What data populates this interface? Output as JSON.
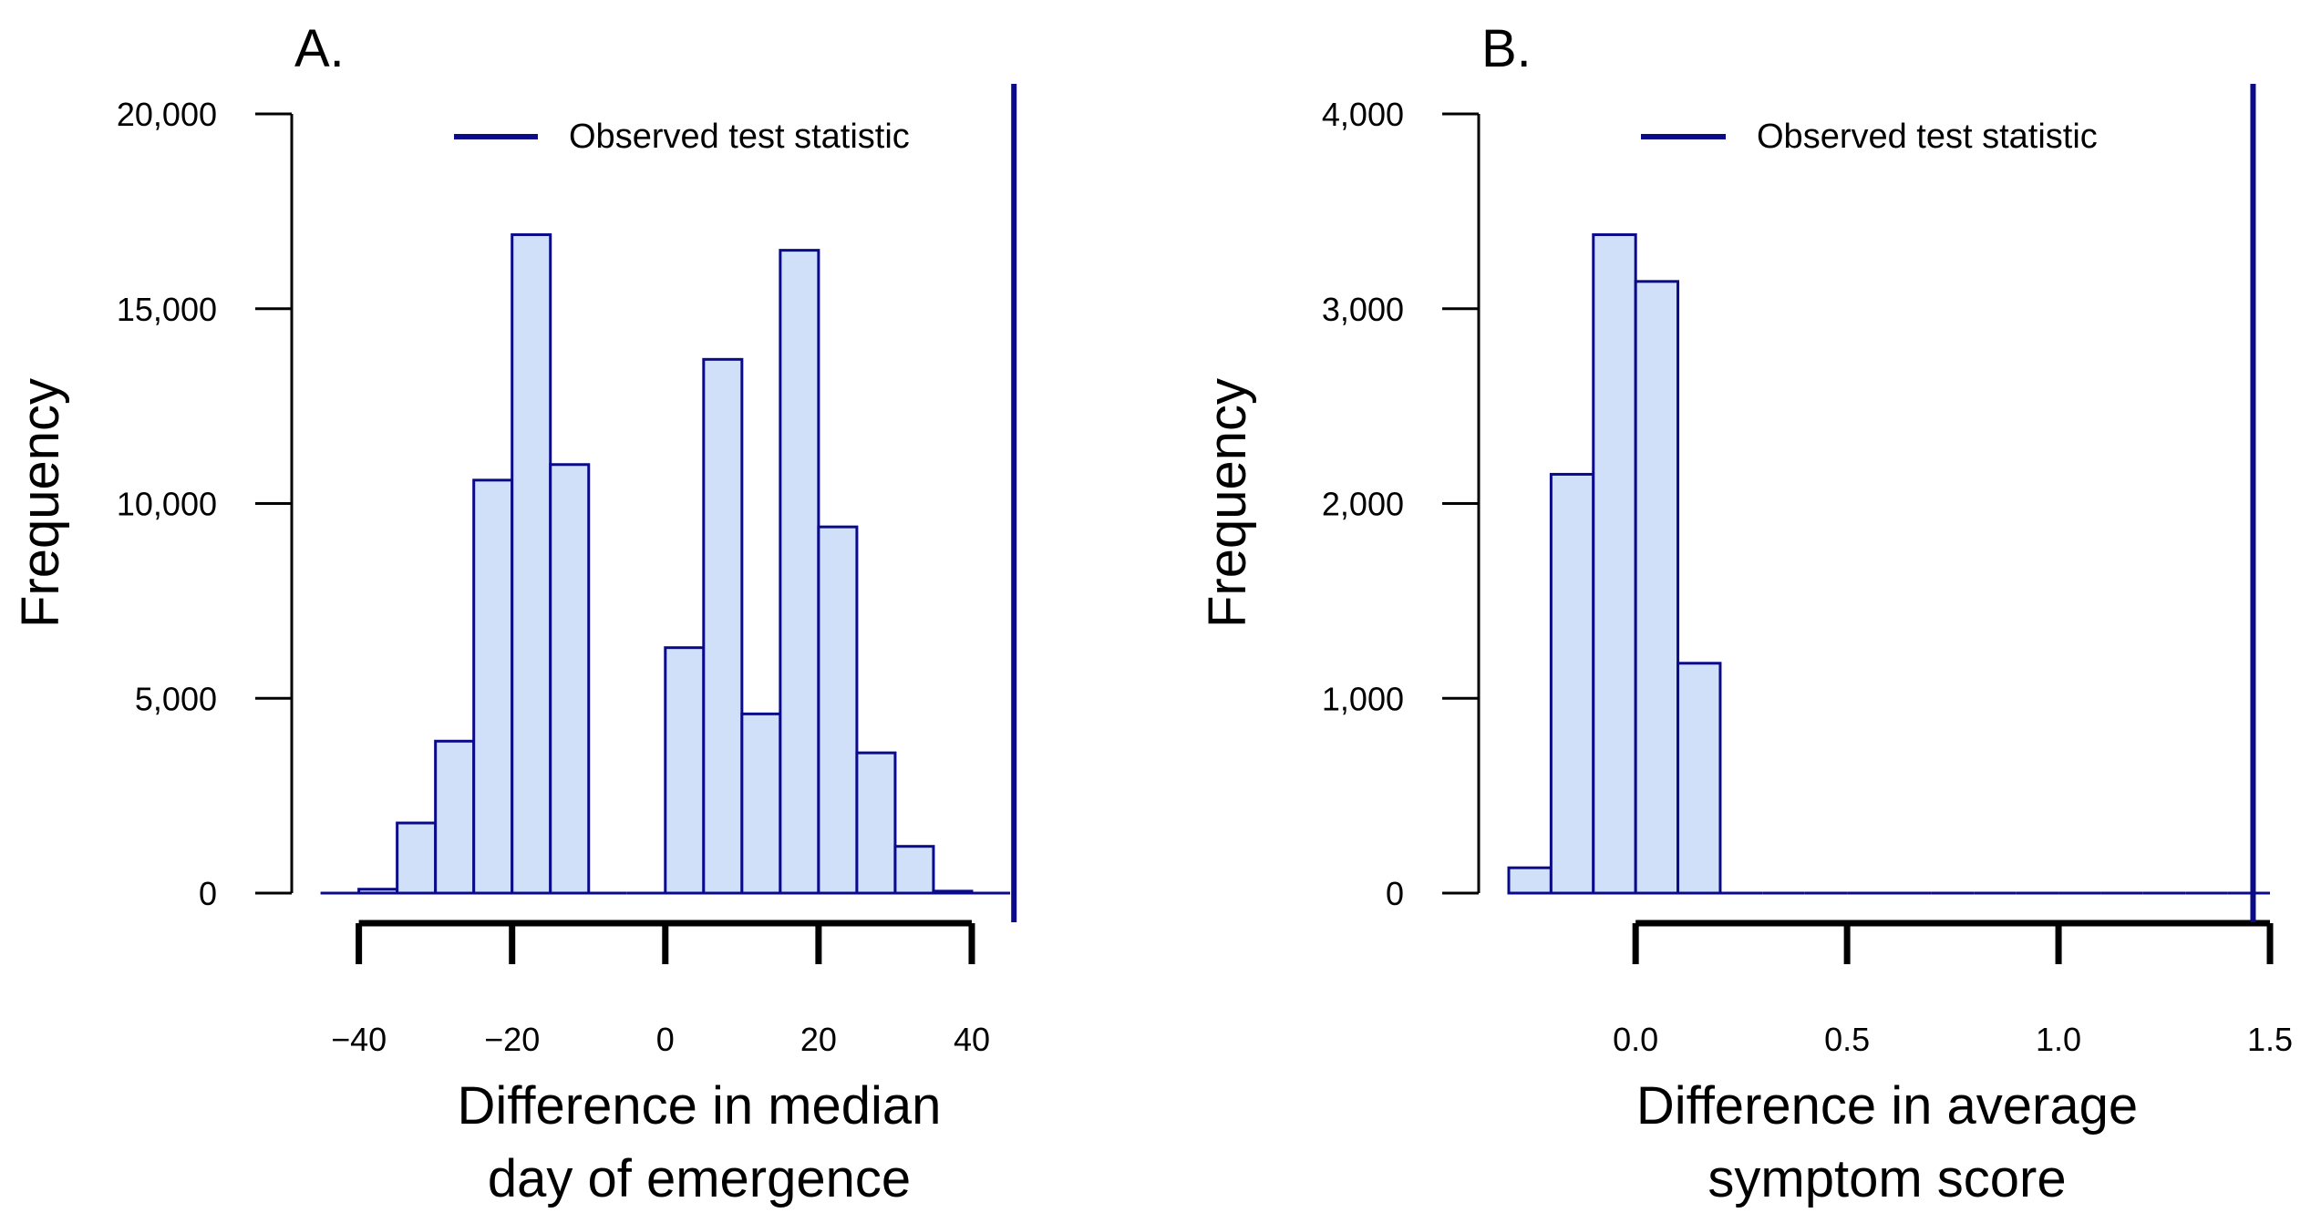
{
  "chart_data": [
    {
      "type": "bar",
      "panel_label": "A.",
      "xlabel_lines": [
        "Difference in median",
        "day of emergence"
      ],
      "ylabel": "Frequency",
      "xlim": [
        -44,
        45
      ],
      "ylim": [
        0,
        20000
      ],
      "bin_edges": [
        -45,
        -40,
        -35,
        -30,
        -25,
        -20,
        -15,
        -10,
        -5,
        0,
        5,
        10,
        15,
        20,
        25,
        30,
        35,
        40,
        45
      ],
      "values": [
        0,
        100,
        1800,
        3900,
        10600,
        16900,
        11000,
        0,
        0,
        6300,
        13700,
        4600,
        16500,
        9400,
        3600,
        1200,
        50,
        0
      ],
      "yticks": [
        0,
        5000,
        10000,
        15000,
        20000
      ],
      "ytick_labels": [
        "0",
        "5,000",
        "10,000",
        "15,000",
        "20,000"
      ],
      "xticks": [
        -40,
        -20,
        0,
        20,
        40
      ],
      "xtick_labels": [
        "−40",
        "−20",
        "0",
        "20",
        "40"
      ],
      "xaxis_range": [
        -40,
        40
      ],
      "observed_statistic": 45.5,
      "legend": {
        "label": "Observed test statistic",
        "position": "top-right"
      },
      "colors": {
        "fill": "#cfe0f8",
        "stroke": "#0b0b8a",
        "observed_line": "#0b0b8a",
        "axis": "#000000"
      }
    },
    {
      "type": "bar",
      "panel_label": "B.",
      "xlabel_lines": [
        "Difference in average",
        "symptom score"
      ],
      "ylabel": "Frequency",
      "xlim": [
        -0.3,
        1.5
      ],
      "ylim": [
        0,
        4000
      ],
      "bin_edges": [
        -0.3,
        -0.2,
        -0.1,
        0.0,
        0.1,
        0.2,
        0.3,
        0.4,
        0.5,
        0.6,
        0.7,
        0.8,
        0.9,
        1.0,
        1.1,
        1.2,
        1.3,
        1.4,
        1.5
      ],
      "values": [
        130,
        2150,
        3380,
        3140,
        1180,
        0,
        0,
        0,
        0,
        0,
        0,
        0,
        0,
        0,
        0,
        0,
        0,
        0
      ],
      "yticks": [
        0,
        1000,
        2000,
        3000,
        4000
      ],
      "ytick_labels": [
        "0",
        "1,000",
        "2,000",
        "3,000",
        "4,000"
      ],
      "xticks": [
        0.0,
        0.5,
        1.0,
        1.5
      ],
      "xtick_labels": [
        "0.0",
        "0.5",
        "1.0",
        "1.5"
      ],
      "xaxis_range": [
        0.0,
        1.5
      ],
      "observed_statistic": 1.46,
      "legend": {
        "label": "Observed test statistic",
        "position": "top-right"
      },
      "colors": {
        "fill": "#cfe0f8",
        "stroke": "#0b0b8a",
        "observed_line": "#0b0b8a",
        "axis": "#000000"
      }
    }
  ]
}
